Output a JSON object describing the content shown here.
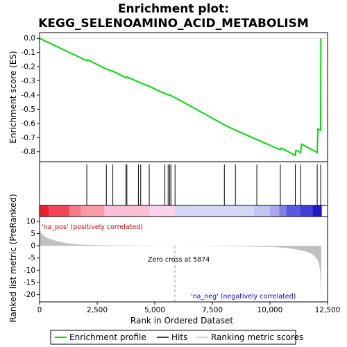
{
  "chart_data": {
    "type": "line",
    "title_line1": "Enrichment plot:",
    "title_line2": "KEGG_SELENOAMINO_ACID_METABOLISM",
    "es_panel": {
      "ylabel": "Enrichment score (ES)",
      "ylim": [
        -0.87,
        0.04
      ],
      "yticks": [
        0.0,
        -0.1,
        -0.2,
        -0.3,
        -0.4,
        -0.5,
        -0.6,
        -0.7,
        -0.8
      ],
      "ytick_labels": [
        "0.0",
        "-0.1",
        "-0.2",
        "-0.3",
        "-0.4",
        "-0.5",
        "-0.6",
        "-0.7",
        "-0.8"
      ],
      "curve": [
        [
          0,
          0.0
        ],
        [
          2050,
          -0.158
        ],
        [
          2100,
          -0.152
        ],
        [
          2900,
          -0.218
        ],
        [
          3180,
          -0.232
        ],
        [
          3750,
          -0.278
        ],
        [
          3790,
          -0.272
        ],
        [
          4290,
          -0.308
        ],
        [
          4390,
          -0.314
        ],
        [
          4760,
          -0.338
        ],
        [
          5440,
          -0.39
        ],
        [
          5580,
          -0.398
        ],
        [
          5650,
          -0.401
        ],
        [
          5700,
          -0.404
        ],
        [
          5880,
          -0.418
        ],
        [
          8020,
          -0.61
        ],
        [
          8500,
          -0.648
        ],
        [
          9430,
          -0.714
        ],
        [
          10450,
          -0.786
        ],
        [
          10500,
          -0.774
        ],
        [
          11100,
          -0.826
        ],
        [
          11130,
          -0.79
        ],
        [
          11330,
          -0.806
        ],
        [
          11370,
          -0.746
        ],
        [
          12050,
          -0.806
        ],
        [
          12080,
          -0.64
        ],
        [
          12200,
          -0.648
        ],
        [
          12210,
          0.0
        ]
      ]
    },
    "hits": [
      2050,
      2900,
      3180,
      3750,
      3790,
      4290,
      4390,
      4760,
      5440,
      5580,
      5650,
      5700,
      5880,
      8020,
      8500,
      9430,
      10450,
      11100,
      11330,
      12050,
      12200
    ],
    "heatmap": {
      "segments": [
        {
          "start": 0,
          "end": 400,
          "color": "#e8202a"
        },
        {
          "start": 400,
          "end": 1300,
          "color": "#f04858"
        },
        {
          "start": 1300,
          "end": 1800,
          "color": "#f77a86"
        },
        {
          "start": 1800,
          "end": 2800,
          "color": "#fa9aa4"
        },
        {
          "start": 2800,
          "end": 4800,
          "color": "#fbbfd8"
        },
        {
          "start": 4800,
          "end": 5874,
          "color": "#fbd4ec"
        },
        {
          "start": 5874,
          "end": 9300,
          "color": "#d6d6f6"
        },
        {
          "start": 9300,
          "end": 10000,
          "color": "#c4c4f2"
        },
        {
          "start": 10000,
          "end": 10400,
          "color": "#a9a9ee"
        },
        {
          "start": 10400,
          "end": 10700,
          "color": "#8080e6"
        },
        {
          "start": 10700,
          "end": 11300,
          "color": "#5a5ae0"
        },
        {
          "start": 11300,
          "end": 11850,
          "color": "#4040d8"
        },
        {
          "start": 11850,
          "end": 12250,
          "color": "#1a1acc"
        }
      ]
    },
    "metric_panel": {
      "ylabel": "Ranked list metric (PreRanked)",
      "ylim": [
        -23,
        12
      ],
      "yticks": [
        10,
        5,
        0,
        -5,
        -10,
        -15,
        -20
      ],
      "ytick_labels": [
        "10",
        "5",
        "0",
        "-5",
        "-10",
        "-15",
        "-20"
      ],
      "curve": [
        [
          0,
          7.5
        ],
        [
          60,
          5.2
        ],
        [
          200,
          4.0
        ],
        [
          400,
          3.0
        ],
        [
          700,
          2.1
        ],
        [
          1000,
          1.4
        ],
        [
          1300,
          0.9
        ],
        [
          1700,
          0.55
        ],
        [
          2200,
          0.35
        ],
        [
          3000,
          0.2
        ],
        [
          4000,
          0.1
        ],
        [
          5000,
          0.04
        ],
        [
          5874,
          0.0
        ],
        [
          7000,
          -0.08
        ],
        [
          8000,
          -0.15
        ],
        [
          9000,
          -0.25
        ],
        [
          9800,
          -0.4
        ],
        [
          10300,
          -0.6
        ],
        [
          10700,
          -0.9
        ],
        [
          11100,
          -1.4
        ],
        [
          11500,
          -2.2
        ],
        [
          11800,
          -3.2
        ],
        [
          12000,
          -4.8
        ],
        [
          12100,
          -6.5
        ],
        [
          12180,
          -10.0
        ],
        [
          12230,
          -22.5
        ]
      ]
    },
    "xlabel": "Rank in Ordered Dataset",
    "xlim": [
      0,
      12500
    ],
    "xticks": [
      0,
      2500,
      5000,
      7500,
      10000,
      12500
    ],
    "xtick_labels": [
      "0",
      "2,500",
      "5,000",
      "7,500",
      "10,000",
      "12,500"
    ],
    "zero_cross_rank": 5874,
    "annotations": {
      "pos_label": "'na_pos' (positively correlated)",
      "neg_label": "'na_neg' (negatively correlated)",
      "zero_cross": "Zero cross at 5874"
    },
    "legend": [
      {
        "label": "Enrichment profile",
        "color": "#00dd00"
      },
      {
        "label": "Hits",
        "color": "#000000"
      },
      {
        "label": "Ranking metric scores",
        "color": "#c0c0c0"
      }
    ],
    "colors": {
      "es_line": "#00dd00",
      "metric_fill": "#c0c0c0",
      "pos_text": "#cc0000",
      "neg_text": "#0000cc"
    }
  }
}
